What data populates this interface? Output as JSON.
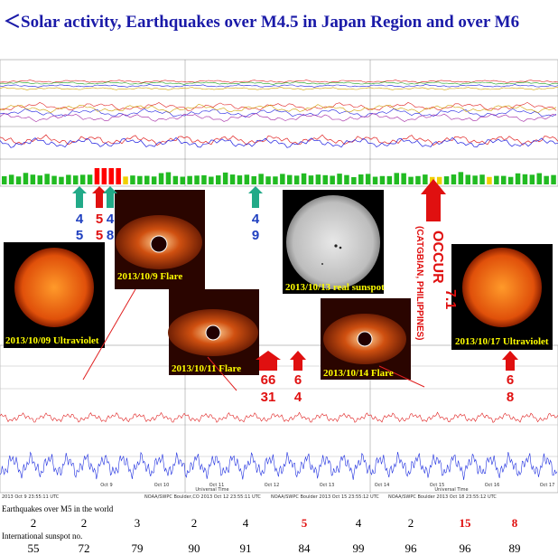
{
  "title": "＜Solar activity, Earthquakes over M4.5 in Japan Region and over M6",
  "top_arrows": [
    {
      "top": "4",
      "bottom": "5",
      "top_color": "#2040c0",
      "bottom_color": "#2040c0"
    },
    {
      "top": "5",
      "bottom": "5",
      "top_color": "#e01010",
      "bottom_color": "#e01010"
    },
    {
      "top": "4",
      "bottom": "8",
      "top_color": "#2040c0",
      "bottom_color": "#2040c0"
    },
    {
      "top": "4",
      "bottom": "9",
      "top_color": "#2040c0",
      "bottom_color": "#2040c0"
    }
  ],
  "occur": {
    "word": "OCCUR",
    "magnitude": "7.1",
    "place": "(CATGBIAN, PHILIPPINES)"
  },
  "captions": {
    "flare_9": "2013/10/9 Flare",
    "sunspot_13": "2013/10/13 real sunspot",
    "uv_9": "2013/10/09 Ultraviolet",
    "uv_17": "2013/10/17 Ultraviolet",
    "flare_11": "2013/10/11 Flare",
    "flare_14": "2013/10/14 Flare"
  },
  "lower_arrows": [
    {
      "top": "66",
      "bottom": "31"
    },
    {
      "top": "6",
      "bottom": "4"
    },
    {
      "top": "6",
      "bottom": "8"
    }
  ],
  "bottom_chart": {
    "dates": [
      "Oct 9",
      "Oct 10",
      "Oct 11",
      "Oct 12",
      "Oct 13",
      "Oct 14",
      "Oct 15",
      "Oct 16",
      "Oct 17"
    ],
    "axis_title": "Universal Time",
    "footers": [
      "2013 Oct  9 23:55:11 UTC",
      "NOAA/SWPC Boulder,CO  2013 Oct 12 23:55:11 UTC",
      "NOAA/SWPC Boulder  2013 Oct 15 23:55:12 UTC",
      "NOAA/SWPC Boulder  2013 Oct 18 23:55:12 UTC"
    ]
  },
  "table": {
    "eq_label": "Earthquakes over M5 in the world",
    "eq_values": [
      "2",
      "2",
      "3",
      "2",
      "4",
      "5",
      "4",
      "2",
      "15",
      "8"
    ],
    "eq_colors": [
      "#000000",
      "#000000",
      "#000000",
      "#000000",
      "#000000",
      "#e01010",
      "#000000",
      "#000000",
      "#e01010",
      "#e01010"
    ],
    "sunspot_label": "International sunspot no.",
    "sunspot_values": [
      "55",
      "72",
      "79",
      "90",
      "91",
      "84",
      "99",
      "96",
      "96",
      "89"
    ]
  }
}
